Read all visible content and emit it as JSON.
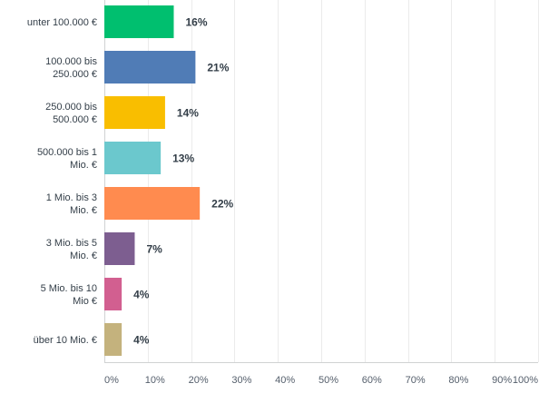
{
  "chart_data": {
    "type": "bar",
    "orientation": "horizontal",
    "categories": [
      [
        "unter 100.000 €"
      ],
      [
        "100.000 bis",
        "250.000 €"
      ],
      [
        "250.000 bis",
        "500.000 €"
      ],
      [
        "500.000 bis 1",
        "Mio. €"
      ],
      [
        "1 Mio. bis 3",
        "Mio. €"
      ],
      [
        "3 Mio. bis 5",
        "Mio. €"
      ],
      [
        "5 Mio. bis 10",
        "Mio €"
      ],
      [
        "über 10 Mio. €"
      ]
    ],
    "values": [
      16,
      21,
      14,
      13,
      22,
      7,
      4,
      4
    ],
    "value_labels": [
      "16%",
      "21%",
      "14%",
      "13%",
      "22%",
      "7%",
      "4%",
      "4%"
    ],
    "colors": [
      "#00bf6f",
      "#507cb6",
      "#f9be00",
      "#6bc8cd",
      "#ff8b4f",
      "#7d5e90",
      "#d25f90",
      "#c4b27d"
    ],
    "xlim": [
      0,
      100
    ],
    "xticks": [
      0,
      10,
      20,
      30,
      40,
      50,
      60,
      70,
      80,
      90,
      100
    ],
    "xtick_labels": [
      "0%",
      "10%",
      "20%",
      "30%",
      "40%",
      "50%",
      "60%",
      "70%",
      "80%",
      "90%",
      "100%"
    ],
    "grid": true
  }
}
